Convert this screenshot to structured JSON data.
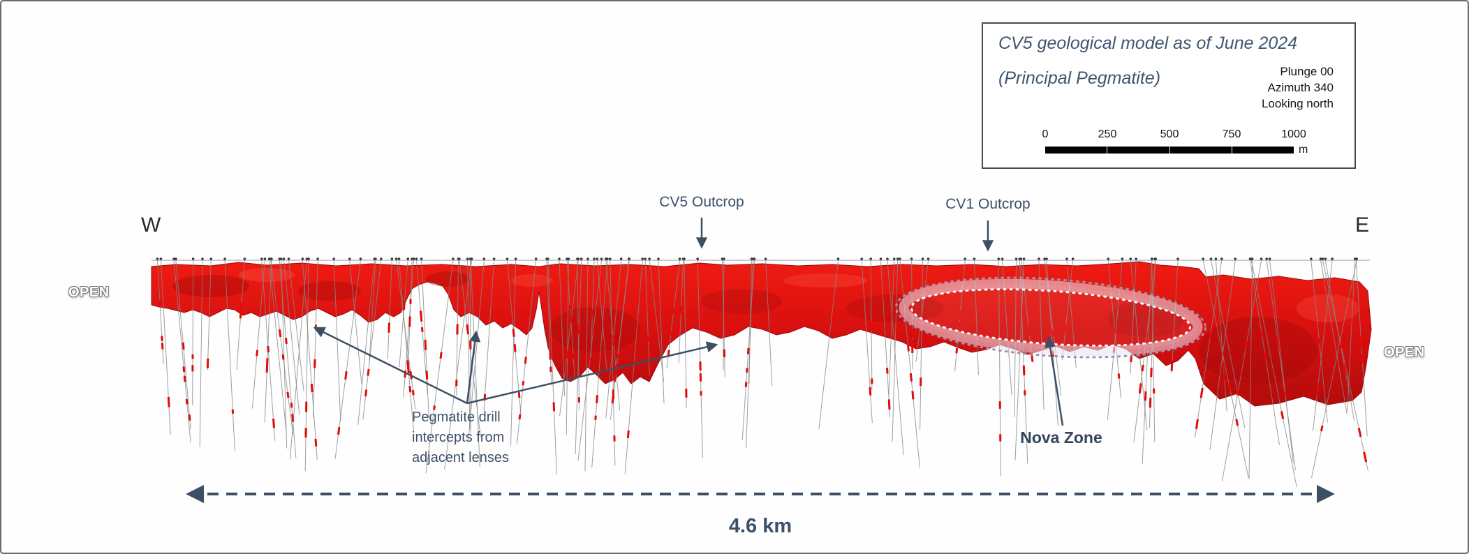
{
  "figure": {
    "legend_box": {
      "title_line1": "CV5 geological model as of June 2024",
      "title_line2": "(Principal Pegmatite)",
      "orientation": [
        "Plunge 00",
        "Azimuth 340",
        "Looking north"
      ],
      "scale_bar": {
        "ticks": [
          "0",
          "250",
          "500",
          "750",
          "1000"
        ],
        "unit": "m"
      }
    },
    "direction_left": "W",
    "direction_right": "E",
    "open_left": "OPEN",
    "open_right": "OPEN",
    "annotations": {
      "cv5_outcrop": "CV5 Outcrop",
      "cv1_outcrop": "CV1 Outcrop",
      "pegmatite_note": "Pegmatite drill intercepts from adjacent lenses",
      "nova_zone": "Nova Zone",
      "strike_length": "4.6 km"
    },
    "colors": {
      "pegmatite_red": "#d90f0f",
      "annotation_slate": "#3d4f63"
    }
  }
}
